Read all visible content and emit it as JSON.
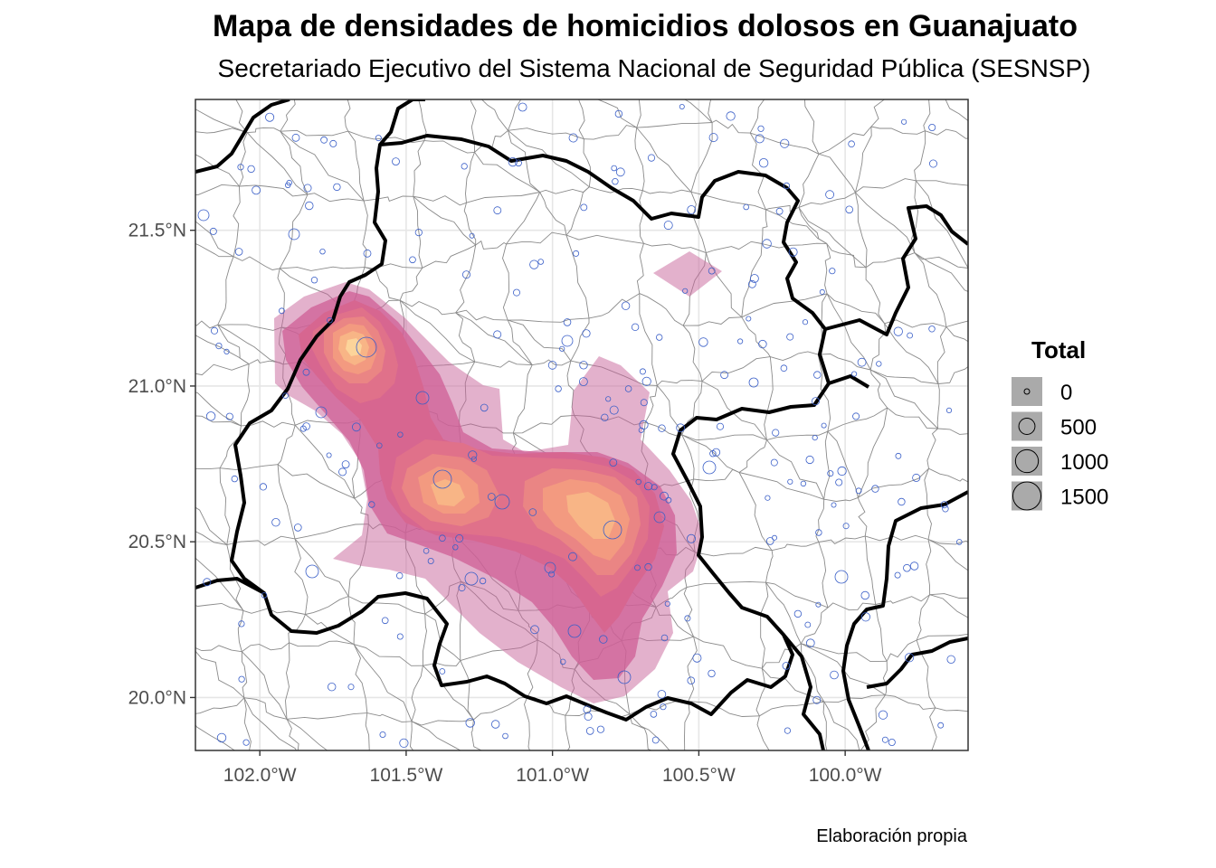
{
  "title": "Mapa de densidades de homicidios dolosos en Guanajuato",
  "subtitle": "Secretariado Ejecutivo del Sistema Nacional de Seguridad Pública (SESNSP)",
  "caption": "Elaboración propia",
  "map": {
    "x_ticks": [
      {
        "value": -102.0,
        "label": "102.0°W"
      },
      {
        "value": -101.5,
        "label": "101.5°W"
      },
      {
        "value": -101.0,
        "label": "101.0°W"
      },
      {
        "value": -100.5,
        "label": "100.5°W"
      },
      {
        "value": -100.0,
        "label": "100.0°W"
      }
    ],
    "y_ticks": [
      {
        "value": 21.5,
        "label": "21.5°N"
      },
      {
        "value": 21.0,
        "label": "21.0°N"
      },
      {
        "value": 20.5,
        "label": "20.5°N"
      },
      {
        "value": 20.0,
        "label": "20.0°N"
      }
    ],
    "lon_range": [
      -102.22,
      -99.58
    ],
    "lat_range": [
      19.83,
      21.92
    ],
    "grid": true,
    "colors": {
      "density_low": "#c8649a",
      "density_high": "#ffe0b0",
      "point_stroke": "#3a5fc8",
      "state_border": "#000000",
      "municipal_border": "#888888"
    }
  },
  "legend": {
    "title": "Total",
    "items": [
      {
        "value": 0,
        "label": "0"
      },
      {
        "value": 500,
        "label": "500"
      },
      {
        "value": 1000,
        "label": "1000"
      },
      {
        "value": 1500,
        "label": "1500"
      }
    ]
  }
}
